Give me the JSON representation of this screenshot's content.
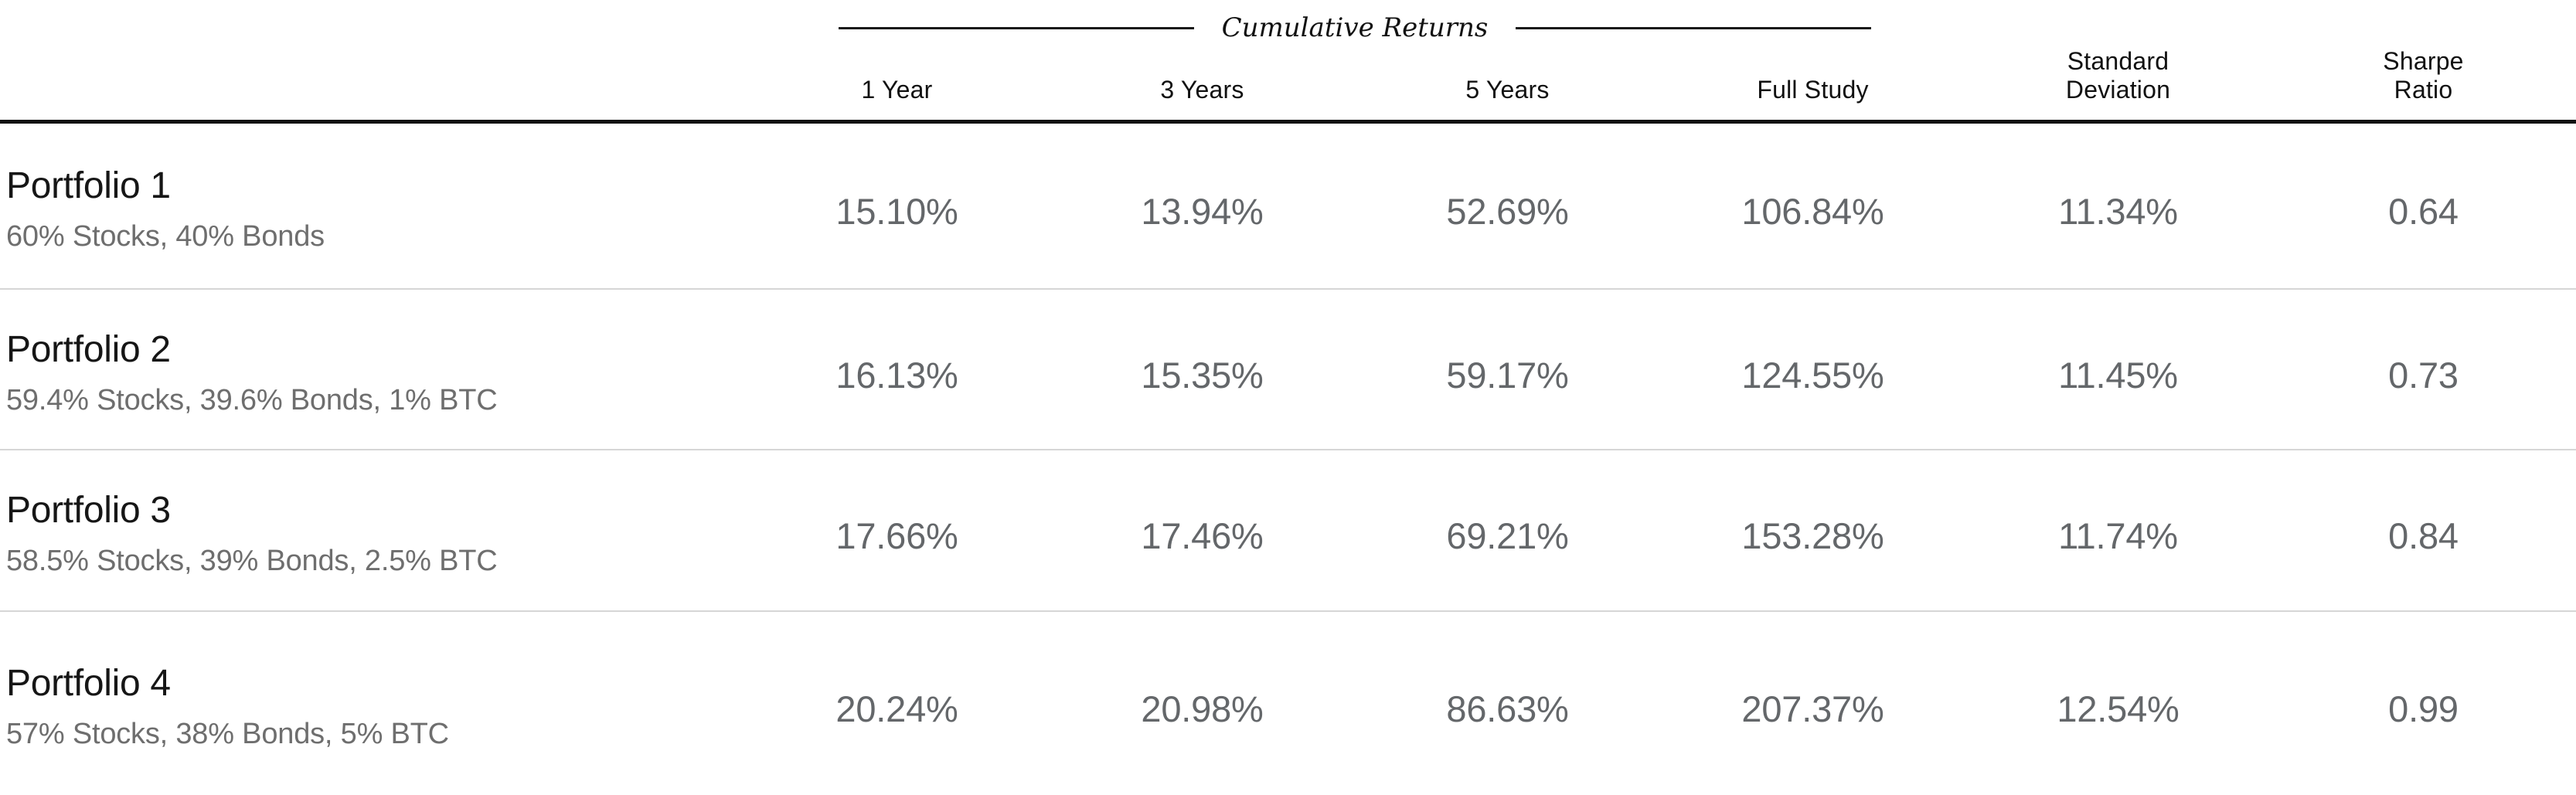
{
  "table": {
    "group_header": {
      "label": "Cumulative Returns"
    },
    "columns": [
      {
        "label": "1 Year"
      },
      {
        "label": "3 Years"
      },
      {
        "label": "5 Years"
      },
      {
        "label": "Full Study"
      },
      {
        "line1": "Standard",
        "line2": "Deviation"
      },
      {
        "line1": "Sharpe",
        "line2": "Ratio"
      }
    ],
    "rows": [
      {
        "title": "Portfolio 1",
        "subtitle": "60% Stocks, 40% Bonds",
        "values": [
          "15.10%",
          "13.94%",
          "52.69%",
          "106.84%",
          "11.34%",
          "0.64"
        ]
      },
      {
        "title": "Portfolio 2",
        "subtitle": "59.4% Stocks, 39.6% Bonds, 1% BTC",
        "values": [
          "16.13%",
          "15.35%",
          "59.17%",
          "124.55%",
          "11.45%",
          "0.73"
        ]
      },
      {
        "title": "Portfolio 3",
        "subtitle": "58.5% Stocks, 39% Bonds, 2.5% BTC",
        "values": [
          "17.66%",
          "17.46%",
          "69.21%",
          "153.28%",
          "11.74%",
          "0.84"
        ]
      },
      {
        "title": "Portfolio 4",
        "subtitle": "57% Stocks, 38% Bonds, 5% BTC",
        "values": [
          "20.24%",
          "20.98%",
          "86.63%",
          "207.37%",
          "12.54%",
          "0.99"
        ]
      }
    ]
  },
  "colors": {
    "title_text": "#161616",
    "subtitle_text": "#6e6e6e",
    "value_text": "#64676a",
    "header_text": "#111111",
    "heavy_rule": "#111111",
    "light_rule": "#d6d6d6",
    "background": "#ffffff"
  }
}
